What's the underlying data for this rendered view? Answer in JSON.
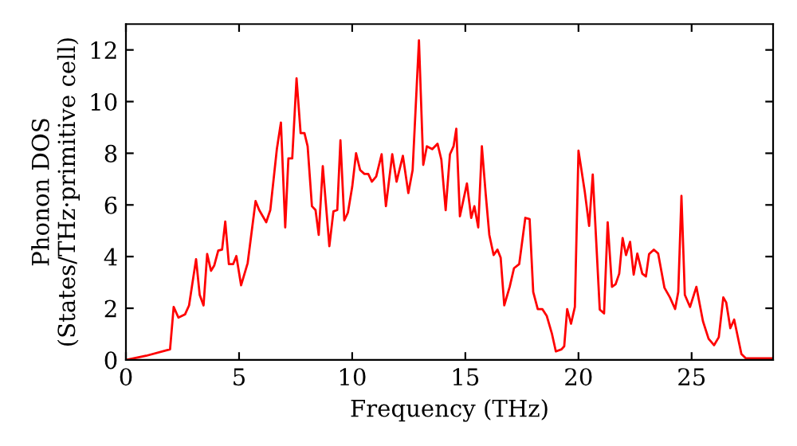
{
  "chart_data": {
    "type": "line",
    "xlabel": "Frequency (THz)",
    "ylabel": "Phonon DOS\n(States/THz·primitive cell)",
    "xlim": [
      0,
      28.6
    ],
    "ylim": [
      0,
      13
    ],
    "xticks": [
      0,
      5,
      10,
      15,
      20,
      25
    ],
    "yticks": [
      0,
      2,
      4,
      6,
      8,
      10,
      12
    ],
    "grid": false,
    "legend": false,
    "marker": "none",
    "line_style": "solid",
    "series": [
      {
        "color": "#ff0000",
        "x": [
          0,
          0.89,
          1.95,
          2.11,
          2.32,
          2.61,
          2.79,
          3.1,
          3.26,
          3.43,
          3.59,
          3.76,
          3.9,
          4.08,
          4.25,
          4.39,
          4.55,
          4.74,
          4.88,
          5.09,
          5.38,
          5.73,
          5.89,
          6.2,
          6.38,
          6.67,
          6.85,
          7.04,
          7.18,
          7.35,
          7.54,
          7.72,
          7.89,
          8.03,
          8.22,
          8.38,
          8.52,
          8.7,
          8.99,
          9.17,
          9.34,
          9.48,
          9.65,
          9.81,
          10.0,
          10.17,
          10.35,
          10.54,
          10.71,
          10.87,
          11.06,
          11.3,
          11.49,
          11.77,
          11.96,
          12.24,
          12.48,
          12.67,
          12.95,
          13.14,
          13.3,
          13.54,
          13.77,
          13.94,
          14.13,
          14.32,
          14.48,
          14.6,
          14.76,
          15.07,
          15.26,
          15.4,
          15.57,
          15.73,
          15.9,
          16.06,
          16.25,
          16.42,
          16.56,
          16.72,
          16.96,
          17.15,
          17.38,
          17.65,
          17.84,
          18.0,
          18.2,
          18.4,
          18.6,
          18.83,
          19.0,
          19.25,
          19.37,
          19.5,
          19.67,
          19.84,
          20.0,
          20.28,
          20.47,
          20.63,
          20.94,
          21.13,
          21.29,
          21.48,
          21.64,
          21.8,
          21.95,
          22.1,
          22.28,
          22.44,
          22.6,
          22.82,
          22.98,
          23.12,
          23.33,
          23.52,
          23.8,
          24.04,
          24.27,
          24.41,
          24.55,
          24.7,
          24.93,
          25.21,
          25.5,
          25.75,
          25.99,
          26.2,
          26.4,
          26.53,
          26.71,
          26.88,
          27.2,
          27.4,
          28.6
        ],
        "values": [
          0,
          0.16,
          0.41,
          2.05,
          1.64,
          1.76,
          2.11,
          3.9,
          2.52,
          2.11,
          4.1,
          3.45,
          3.65,
          4.23,
          4.27,
          5.36,
          3.71,
          3.71,
          4.02,
          2.89,
          3.75,
          6.15,
          5.8,
          5.33,
          5.8,
          8.16,
          9.19,
          5.13,
          7.8,
          7.8,
          10.9,
          8.78,
          8.78,
          8.27,
          5.95,
          5.8,
          4.84,
          7.5,
          4.4,
          5.75,
          5.8,
          8.5,
          5.4,
          5.7,
          6.7,
          8.0,
          7.35,
          7.2,
          7.2,
          6.9,
          7.1,
          7.96,
          5.95,
          7.96,
          6.9,
          7.9,
          6.46,
          7.35,
          12.37,
          7.55,
          8.27,
          8.16,
          8.37,
          7.75,
          5.8,
          7.96,
          8.27,
          8.95,
          5.56,
          6.83,
          5.5,
          5.95,
          5.13,
          8.27,
          6.42,
          4.84,
          4.06,
          4.27,
          3.96,
          2.11,
          2.83,
          3.55,
          3.71,
          5.5,
          5.45,
          2.63,
          1.97,
          1.97,
          1.7,
          1.0,
          0.33,
          0.41,
          0.53,
          1.97,
          1.4,
          2.05,
          8.1,
          6.5,
          5.19,
          7.18,
          1.95,
          1.8,
          5.33,
          2.83,
          2.93,
          3.34,
          4.72,
          4.06,
          4.57,
          3.3,
          4.12,
          3.34,
          3.23,
          4.1,
          4.27,
          4.12,
          2.79,
          2.42,
          1.97,
          2.63,
          6.35,
          2.52,
          2.05,
          2.83,
          1.5,
          0.82,
          0.57,
          0.88,
          2.42,
          2.22,
          1.23,
          1.56,
          0.23,
          0.06,
          0.06
        ]
      }
    ]
  }
}
